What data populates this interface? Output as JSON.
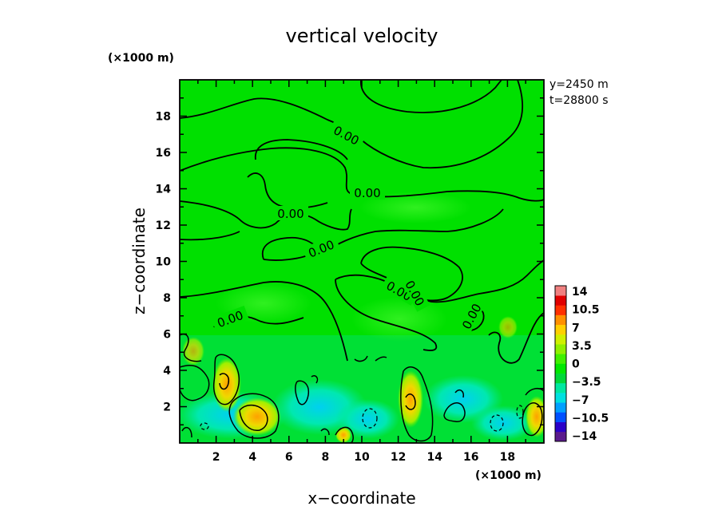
{
  "chart_data": {
    "type": "heatmap",
    "title": "vertical velocity",
    "xlabel": "x−coordinate",
    "ylabel": "z−coordinate",
    "x_multiplier": "(×1000 m)",
    "y_multiplier": "(×1000 m)",
    "xlim": [
      0,
      20
    ],
    "ylim": [
      0,
      20
    ],
    "x_ticks": [
      2,
      4,
      6,
      8,
      10,
      12,
      14,
      16,
      18
    ],
    "y_ticks": [
      2,
      4,
      6,
      8,
      10,
      12,
      14,
      16,
      18
    ],
    "info": [
      "y=2450  m",
      "t=28800  s"
    ],
    "contour_label": "0.00",
    "colorbar": {
      "ticks": [
        "14",
        "10.5",
        "7",
        "3.5",
        "0",
        "−3.5",
        "−7",
        "−10.5",
        "−14"
      ],
      "range": [
        -14,
        14
      ],
      "colors": [
        "#5a1a8c",
        "#2a00c8",
        "#0050ff",
        "#00a0ff",
        "#00e0e0",
        "#00e8a0",
        "#00d838",
        "#00e800",
        "#40f000",
        "#90f000",
        "#d0f000",
        "#ffd000",
        "#ff9000",
        "#ff3000",
        "#e00000",
        "#f08080"
      ]
    },
    "field": {
      "background": "#00e000",
      "convective_cores": [
        {
          "x": 2.6,
          "z": 3.2,
          "peak_w": 7
        },
        {
          "x": 4.4,
          "z": 1.6,
          "peak_w": 7
        },
        {
          "x": 12.6,
          "z": 2.4,
          "peak_w": 7
        },
        {
          "x": 19.7,
          "z": 1.3,
          "peak_w": 7
        }
      ],
      "downdraft_centers": [
        {
          "x": 10.2,
          "z": 1.3,
          "min_w": -3.5
        },
        {
          "x": 17.3,
          "z": 1.0,
          "min_w": -3.5
        },
        {
          "x": 1.2,
          "z": 0.9,
          "min_w": -3.5
        },
        {
          "x": 18.8,
          "z": 1.6,
          "min_w": -3.5
        }
      ]
    }
  }
}
